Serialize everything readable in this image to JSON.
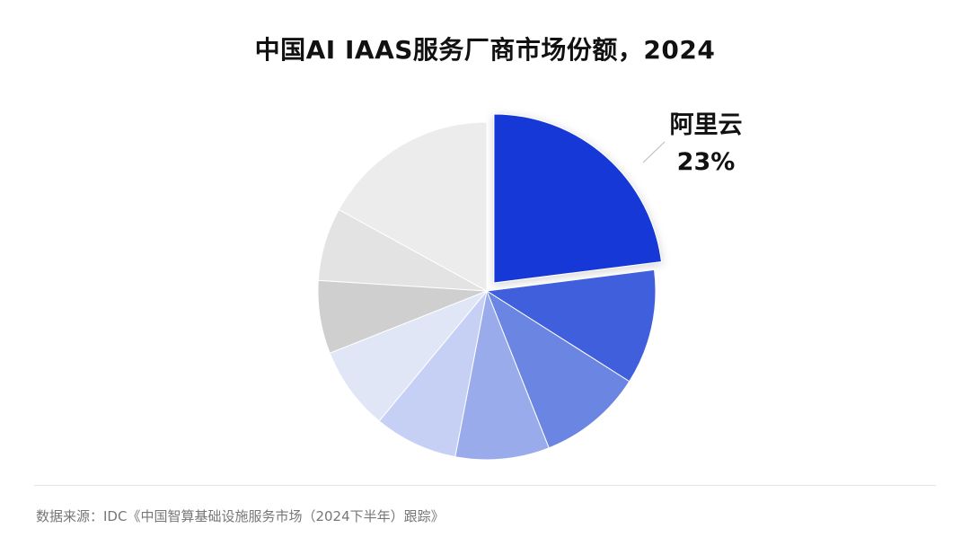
{
  "title": "中国AI IAAS服务厂商市场份额，2024",
  "source_note": "数据来源：IDC《中国智算基础设施服务市场（2024下半年）跟踪》",
  "colors": {
    "highlight": "#1538d6",
    "label_text": "#111111",
    "leader_line": "#bbbbbb"
  },
  "chart_data": {
    "type": "pie",
    "title": "中国AI IAAS服务厂商市场份额，2024",
    "highlight_index": 0,
    "slices": [
      {
        "label": "阿里云",
        "value": 23,
        "display": "23%",
        "color": "#1538d6"
      },
      {
        "label": "",
        "value": 11,
        "display": "",
        "color": "#3f5fdc"
      },
      {
        "label": "",
        "value": 10,
        "display": "",
        "color": "#6b85e2"
      },
      {
        "label": "",
        "value": 9,
        "display": "",
        "color": "#9aabec"
      },
      {
        "label": "",
        "value": 8,
        "display": "",
        "color": "#c5d0f4"
      },
      {
        "label": "",
        "value": 8,
        "display": "",
        "color": "#e1e6f6"
      },
      {
        "label": "",
        "value": 7,
        "display": "",
        "color": "#cfcfcf"
      },
      {
        "label": "",
        "value": 7,
        "display": "",
        "color": "#e3e3e3"
      },
      {
        "label": "",
        "value": 17,
        "display": "",
        "color": "#ececec"
      }
    ]
  }
}
